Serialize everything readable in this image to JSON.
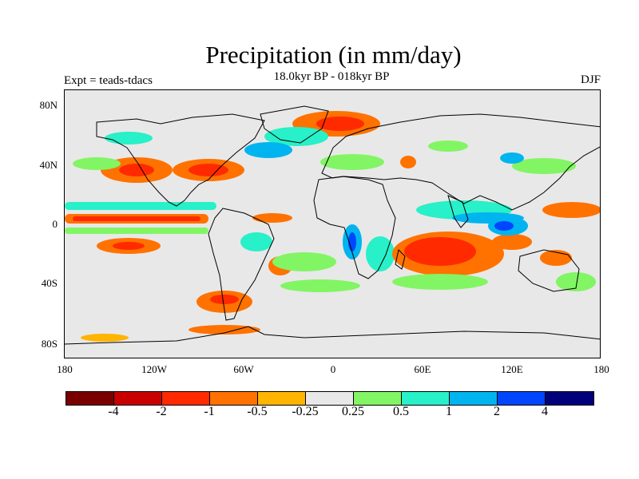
{
  "title": "Precipitation (in mm/day)",
  "subtitle": "18.0kyr BP - 018kyr BP",
  "experiment_label": "Expt = teads-tdacs",
  "season_label": "DJF",
  "colors": {
    "background": "#ffffff",
    "map_fill": "#e8e8e8",
    "coastline": "#000000"
  },
  "map": {
    "projection": "cylindrical-equidistant",
    "lon_range": [
      -180,
      180
    ],
    "lat_range": [
      -90,
      90
    ],
    "lat_ticks": [
      "80N",
      "40N",
      "0",
      "40S",
      "80S"
    ],
    "lon_ticks": [
      "180",
      "120W",
      "60W",
      "0",
      "60E",
      "120E",
      "180"
    ]
  },
  "legend": {
    "colors": [
      "#7a0000",
      "#c80000",
      "#ff2a00",
      "#ff7200",
      "#ffb400",
      "#e8e8e8",
      "#82f564",
      "#28f0c8",
      "#00b4f0",
      "#0046ff",
      "#00007a"
    ],
    "labels": [
      "-4",
      "-2",
      "-1",
      "-0.5",
      "-0.25",
      "0.25",
      "0.5",
      "1",
      "2",
      "4"
    ]
  }
}
